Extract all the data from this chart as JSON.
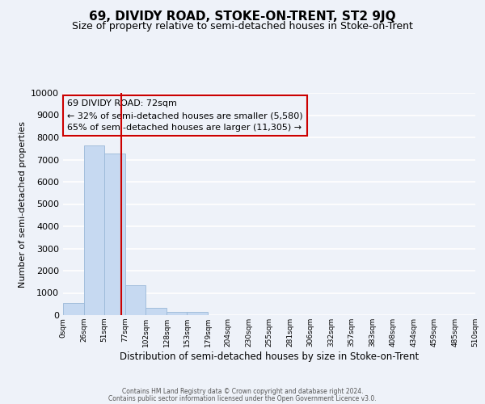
{
  "title": "69, DIVIDY ROAD, STOKE-ON-TRENT, ST2 9JQ",
  "subtitle": "Size of property relative to semi-detached houses in Stoke-on-Trent",
  "xlabel": "Distribution of semi-detached houses by size in Stoke-on-Trent",
  "ylabel": "Number of semi-detached properties",
  "bin_edges": [
    0,
    26,
    51,
    77,
    102,
    128,
    153,
    179,
    204,
    230,
    255,
    281,
    306,
    332,
    357,
    383,
    408,
    434,
    459,
    485,
    510
  ],
  "bar_heights": [
    550,
    7650,
    7280,
    1330,
    340,
    160,
    130,
    0,
    0,
    0,
    0,
    0,
    0,
    0,
    0,
    0,
    0,
    0,
    0,
    0
  ],
  "bar_color": "#c6d9f1",
  "bar_edgecolor": "#9ab8d8",
  "property_line_x": 72,
  "property_line_color": "#cc0000",
  "annotation_box_edgecolor": "#cc0000",
  "annotation_title": "69 DIVIDY ROAD: 72sqm",
  "annotation_line1": "← 32% of semi-detached houses are smaller (5,580)",
  "annotation_line2": "65% of semi-detached houses are larger (11,305) →",
  "ylim": [
    0,
    10000
  ],
  "yticks": [
    0,
    1000,
    2000,
    3000,
    4000,
    5000,
    6000,
    7000,
    8000,
    9000,
    10000
  ],
  "xtick_labels": [
    "0sqm",
    "26sqm",
    "51sqm",
    "77sqm",
    "102sqm",
    "128sqm",
    "153sqm",
    "179sqm",
    "204sqm",
    "230sqm",
    "255sqm",
    "281sqm",
    "306sqm",
    "332sqm",
    "357sqm",
    "383sqm",
    "408sqm",
    "434sqm",
    "459sqm",
    "485sqm",
    "510sqm"
  ],
  "footer_line1": "Contains HM Land Registry data © Crown copyright and database right 2024.",
  "footer_line2": "Contains public sector information licensed under the Open Government Licence v3.0.",
  "background_color": "#eef2f9",
  "grid_color": "#ffffff",
  "title_fontsize": 11,
  "subtitle_fontsize": 9,
  "annotation_fontsize": 8,
  "ylabel_fontsize": 8,
  "xlabel_fontsize": 8.5,
  "footer_fontsize": 5.5,
  "ytick_fontsize": 8,
  "xtick_fontsize": 6.5
}
